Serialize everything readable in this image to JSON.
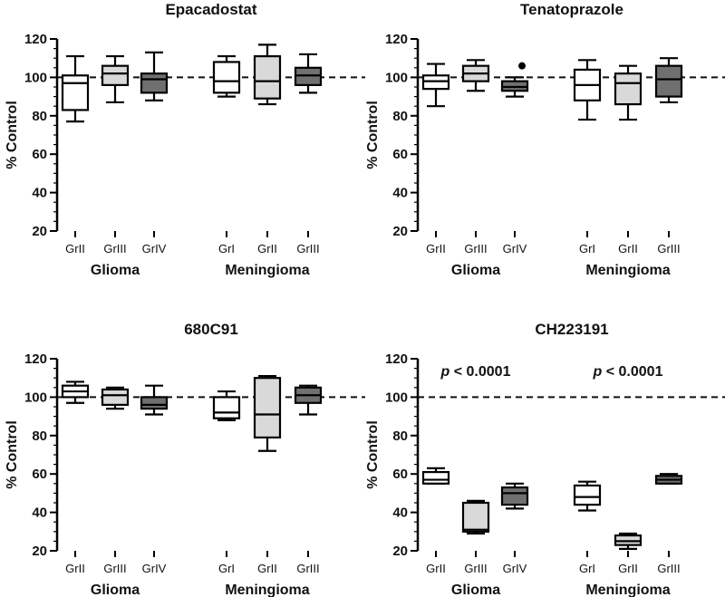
{
  "chart_data": [
    {
      "type": "box",
      "title": "Epacadostat",
      "ylabel": "% Control",
      "ylim": [
        20,
        120
      ],
      "yticks": [
        20,
        40,
        60,
        80,
        100,
        120
      ],
      "reference_line": 100,
      "groups": [
        "Glioma",
        "Meningioma"
      ],
      "categories": [
        "GrII",
        "GrIII",
        "GrIV",
        "GrI",
        "GrII",
        "GrIII"
      ],
      "boxes": [
        {
          "label": "GrII",
          "group": "Glioma",
          "fill": "#ffffff",
          "min": 77,
          "q1": 83,
          "median": 97,
          "q3": 101,
          "max": 111
        },
        {
          "label": "GrIII",
          "group": "Glioma",
          "fill": "#d9d9d9",
          "min": 87,
          "q1": 96,
          "median": 102,
          "q3": 106,
          "max": 111
        },
        {
          "label": "GrIV",
          "group": "Glioma",
          "fill": "#707070",
          "min": 88,
          "q1": 92,
          "median": 99,
          "q3": 102,
          "max": 113
        },
        {
          "label": "GrI",
          "group": "Meningioma",
          "fill": "#ffffff",
          "min": 90,
          "q1": 92,
          "median": 98,
          "q3": 108,
          "max": 111
        },
        {
          "label": "GrII",
          "group": "Meningioma",
          "fill": "#d9d9d9",
          "min": 86,
          "q1": 89,
          "median": 98,
          "q3": 111,
          "max": 117
        },
        {
          "label": "GrIII",
          "group": "Meningioma",
          "fill": "#707070",
          "min": 92,
          "q1": 96,
          "median": 101,
          "q3": 105,
          "max": 112
        }
      ],
      "outliers": []
    },
    {
      "type": "box",
      "title": "Tenatoprazole",
      "ylabel": "% Control",
      "ylim": [
        20,
        120
      ],
      "yticks": [
        20,
        40,
        60,
        80,
        100,
        120
      ],
      "reference_line": 100,
      "groups": [
        "Glioma",
        "Meningioma"
      ],
      "categories": [
        "GrII",
        "GrIII",
        "GrIV",
        "GrI",
        "GrII",
        "GrIII"
      ],
      "boxes": [
        {
          "label": "GrII",
          "group": "Glioma",
          "fill": "#ffffff",
          "min": 85,
          "q1": 94,
          "median": 98,
          "q3": 101,
          "max": 107
        },
        {
          "label": "GrIII",
          "group": "Glioma",
          "fill": "#d9d9d9",
          "min": 93,
          "q1": 98,
          "median": 102,
          "q3": 106,
          "max": 109
        },
        {
          "label": "GrIV",
          "group": "Glioma",
          "fill": "#707070",
          "min": 90,
          "q1": 93,
          "median": 95,
          "q3": 98,
          "max": 100
        },
        {
          "label": "GrI",
          "group": "Meningioma",
          "fill": "#ffffff",
          "min": 78,
          "q1": 88,
          "median": 96,
          "q3": 104,
          "max": 109
        },
        {
          "label": "GrII",
          "group": "Meningioma",
          "fill": "#d9d9d9",
          "min": 78,
          "q1": 86,
          "median": 97,
          "q3": 102,
          "max": 106
        },
        {
          "label": "GrIII",
          "group": "Meningioma",
          "fill": "#707070",
          "min": 87,
          "q1": 90,
          "median": 99,
          "q3": 106,
          "max": 110
        }
      ],
      "outliers": [
        {
          "label": "GrIV",
          "group": "Glioma",
          "value": 106
        }
      ]
    },
    {
      "type": "box",
      "title": "680C91",
      "ylabel": "% Control",
      "ylim": [
        20,
        120
      ],
      "yticks": [
        20,
        40,
        60,
        80,
        100,
        120
      ],
      "reference_line": 100,
      "groups": [
        "Glioma",
        "Meningioma"
      ],
      "categories": [
        "GrII",
        "GrIII",
        "GrIV",
        "GrI",
        "GrII",
        "GrIII"
      ],
      "boxes": [
        {
          "label": "GrII",
          "group": "Glioma",
          "fill": "#ffffff",
          "min": 97,
          "q1": 100,
          "median": 103,
          "q3": 106,
          "max": 108
        },
        {
          "label": "GrIII",
          "group": "Glioma",
          "fill": "#d9d9d9",
          "min": 94,
          "q1": 96,
          "median": 101,
          "q3": 104,
          "max": 105
        },
        {
          "label": "GrIV",
          "group": "Glioma",
          "fill": "#707070",
          "min": 91,
          "q1": 94,
          "median": 96,
          "q3": 100,
          "max": 106
        },
        {
          "label": "GrI",
          "group": "Meningioma",
          "fill": "#ffffff",
          "min": 88,
          "q1": 89,
          "median": 92,
          "q3": 100,
          "max": 103
        },
        {
          "label": "GrII",
          "group": "Meningioma",
          "fill": "#d9d9d9",
          "min": 72,
          "q1": 79,
          "median": 91,
          "q3": 110,
          "max": 111
        },
        {
          "label": "GrIII",
          "group": "Meningioma",
          "fill": "#707070",
          "min": 91,
          "q1": 97,
          "median": 101,
          "q3": 105,
          "max": 106
        }
      ],
      "outliers": []
    },
    {
      "type": "box",
      "title": "CH223191",
      "ylabel": "% Control",
      "ylim": [
        20,
        120
      ],
      "yticks": [
        20,
        40,
        60,
        80,
        100,
        120
      ],
      "reference_line": 100,
      "groups": [
        "Glioma",
        "Meningioma"
      ],
      "categories": [
        "GrII",
        "GrIII",
        "GrIV",
        "GrI",
        "GrII",
        "GrIII"
      ],
      "annotations": [
        {
          "group": "Glioma",
          "p_label": "p",
          "text": " < 0.0001"
        },
        {
          "group": "Meningioma",
          "p_label": "p",
          "text": " < 0.0001"
        }
      ],
      "boxes": [
        {
          "label": "GrII",
          "group": "Glioma",
          "fill": "#ffffff",
          "min": 55,
          "q1": 55,
          "median": 57,
          "q3": 61,
          "max": 63
        },
        {
          "label": "GrIII",
          "group": "Glioma",
          "fill": "#d9d9d9",
          "min": 29,
          "q1": 30,
          "median": 31,
          "q3": 45,
          "max": 46
        },
        {
          "label": "GrIV",
          "group": "Glioma",
          "fill": "#707070",
          "min": 42,
          "q1": 44,
          "median": 50,
          "q3": 53,
          "max": 55
        },
        {
          "label": "GrI",
          "group": "Meningioma",
          "fill": "#ffffff",
          "min": 41,
          "q1": 44,
          "median": 48,
          "q3": 54,
          "max": 56
        },
        {
          "label": "GrII",
          "group": "Meningioma",
          "fill": "#d9d9d9",
          "min": 21,
          "q1": 23,
          "median": 25,
          "q3": 28,
          "max": 29
        },
        {
          "label": "GrIII",
          "group": "Meningioma",
          "fill": "#707070",
          "min": 55,
          "q1": 55,
          "median": 57,
          "q3": 59,
          "max": 60
        }
      ],
      "outliers": []
    }
  ]
}
